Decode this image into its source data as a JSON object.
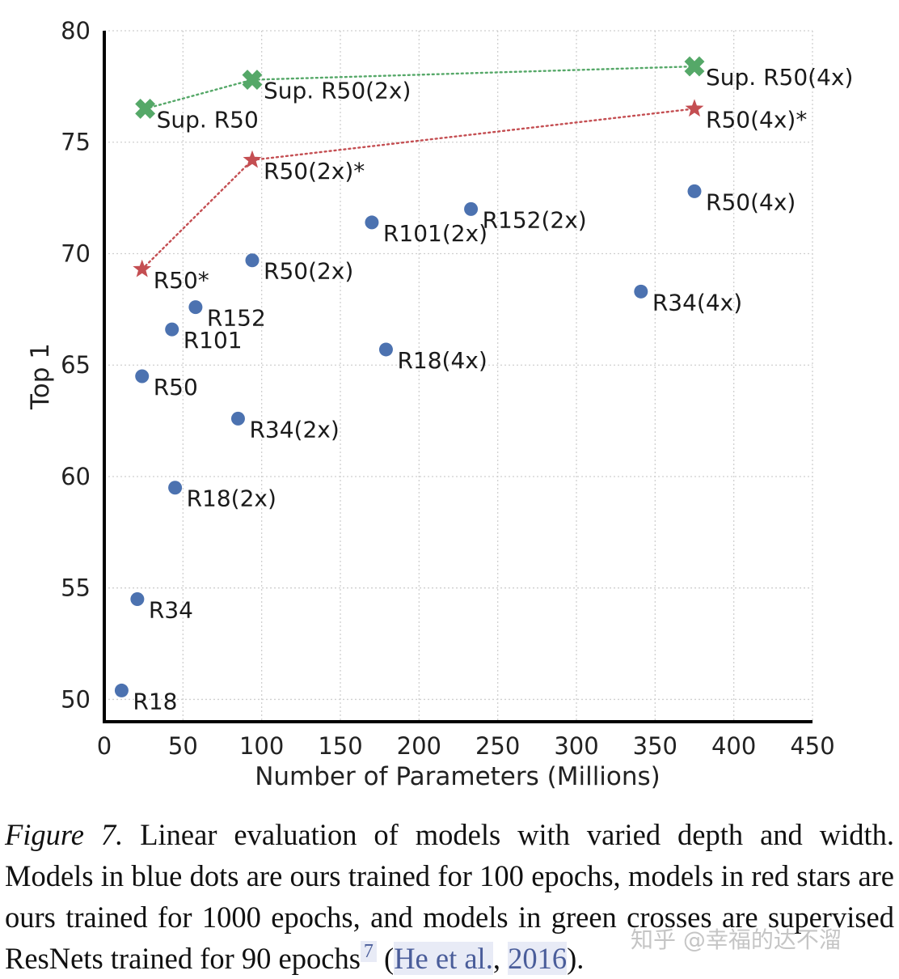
{
  "chart_data": {
    "type": "scatter",
    "xlabel": "Number of Parameters (Millions)",
    "ylabel": "Top 1",
    "xlim": [
      0,
      450
    ],
    "ylim": [
      49,
      80
    ],
    "xticks": [
      0,
      50,
      100,
      150,
      200,
      250,
      300,
      350,
      400,
      450
    ],
    "yticks": [
      50,
      55,
      60,
      65,
      70,
      75,
      80
    ],
    "grid": true,
    "series": [
      {
        "name": "ours, 100 epochs",
        "marker": "dot",
        "color": "#4c72b0",
        "connect": false,
        "points": [
          {
            "label": "R18",
            "x": 11,
            "y": 50.4
          },
          {
            "label": "R34",
            "x": 21,
            "y": 54.5
          },
          {
            "label": "R50",
            "x": 24,
            "y": 64.5
          },
          {
            "label": "R101",
            "x": 43,
            "y": 66.6
          },
          {
            "label": "R152",
            "x": 58,
            "y": 67.6
          },
          {
            "label": "R18(2x)",
            "x": 45,
            "y": 59.5
          },
          {
            "label": "R34(2x)",
            "x": 85,
            "y": 62.6
          },
          {
            "label": "R50(2x)",
            "x": 94,
            "y": 69.7
          },
          {
            "label": "R101(2x)",
            "x": 170,
            "y": 71.4
          },
          {
            "label": "R152(2x)",
            "x": 233,
            "y": 72.0
          },
          {
            "label": "R18(4x)",
            "x": 179,
            "y": 65.7
          },
          {
            "label": "R34(4x)",
            "x": 341,
            "y": 68.3
          },
          {
            "label": "R50(4x)",
            "x": 375,
            "y": 72.8
          }
        ]
      },
      {
        "name": "ours, 1000 epochs",
        "marker": "star",
        "color": "#c44e52",
        "connect": true,
        "points": [
          {
            "label": "R50*",
            "x": 24,
            "y": 69.3
          },
          {
            "label": "R50(2x)*",
            "x": 94,
            "y": 74.2
          },
          {
            "label": "R50(4x)*",
            "x": 375,
            "y": 76.5
          }
        ]
      },
      {
        "name": "supervised, 90 epochs",
        "marker": "cross",
        "color": "#55a868",
        "connect": true,
        "points": [
          {
            "label": "Sup. R50",
            "x": 26,
            "y": 76.5
          },
          {
            "label": "Sup. R50(2x)",
            "x": 94,
            "y": 77.8
          },
          {
            "label": "Sup. R50(4x)",
            "x": 375,
            "y": 78.4
          }
        ]
      }
    ]
  },
  "caption": {
    "figure_label": "Figure 7.",
    "text": "Linear evaluation of models with varied depth and width. Models in blue dots are ours trained for 100 epochs, models in red stars are ours trained for 1000 epochs, and models in green crosses are supervised ResNets trained for 90 epochs",
    "footnote_mark": "7",
    "cite_open": "(",
    "cite_authors": "He et al.",
    "cite_sep": ", ",
    "cite_year": "2016",
    "cite_close": ")."
  },
  "watermark": "知乎 @幸福的达不溜"
}
